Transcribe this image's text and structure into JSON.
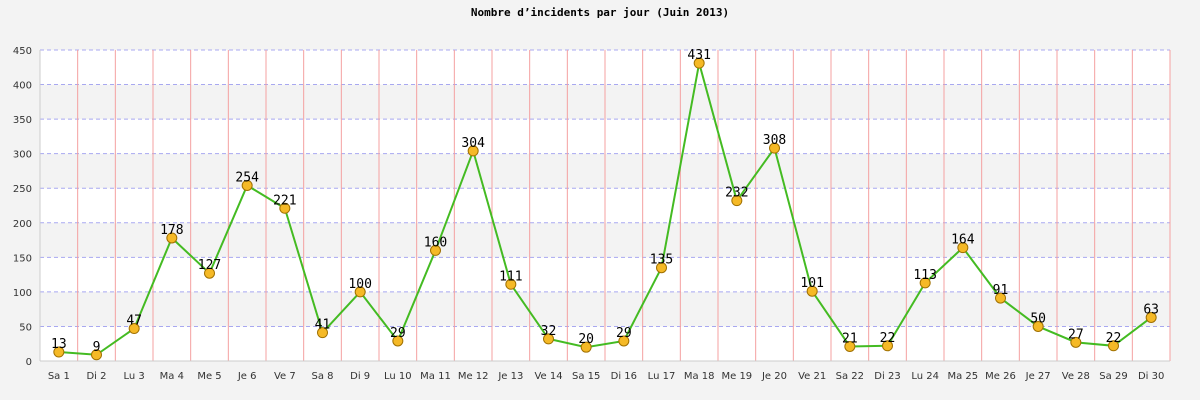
{
  "chart_data": {
    "type": "line",
    "title": "Nombre d’incidents par jour (Juin 2013)",
    "xlabel": "",
    "ylabel": "",
    "ylim": [
      0,
      450
    ],
    "yticks": [
      0,
      50,
      100,
      150,
      200,
      250,
      300,
      350,
      400,
      450
    ],
    "grid": true,
    "categories": [
      "Sa 1",
      "Di 2",
      "Lu 3",
      "Ma 4",
      "Me 5",
      "Je 6",
      "Ve 7",
      "Sa 8",
      "Di 9",
      "Lu 10",
      "Ma 11",
      "Me 12",
      "Je 13",
      "Ve 14",
      "Sa 15",
      "Di 16",
      "Lu 17",
      "Ma 18",
      "Me 19",
      "Je 20",
      "Ve 21",
      "Sa 22",
      "Di 23",
      "Lu 24",
      "Ma 25",
      "Me 26",
      "Je 27",
      "Ve 28",
      "Sa 29",
      "Di 30"
    ],
    "series": [
      {
        "values": [
          13,
          9,
          47,
          178,
          127,
          254,
          221,
          41,
          100,
          29,
          160,
          304,
          111,
          32,
          20,
          29,
          135,
          431,
          232,
          308,
          101,
          21,
          22,
          113,
          164,
          91,
          50,
          27,
          22,
          63
        ],
        "color": "#44bb22",
        "marker_color": "#f5b926"
      }
    ],
    "colors": {
      "background": "#f3f3f3",
      "band_light": "#ffffff",
      "band_dark": "#f3f3f3",
      "vertical_grid": "#f4a0a0",
      "horizontal_grid": "#a8a8f0",
      "axis": "#cccccc",
      "marker_stroke": "#a07000"
    }
  }
}
